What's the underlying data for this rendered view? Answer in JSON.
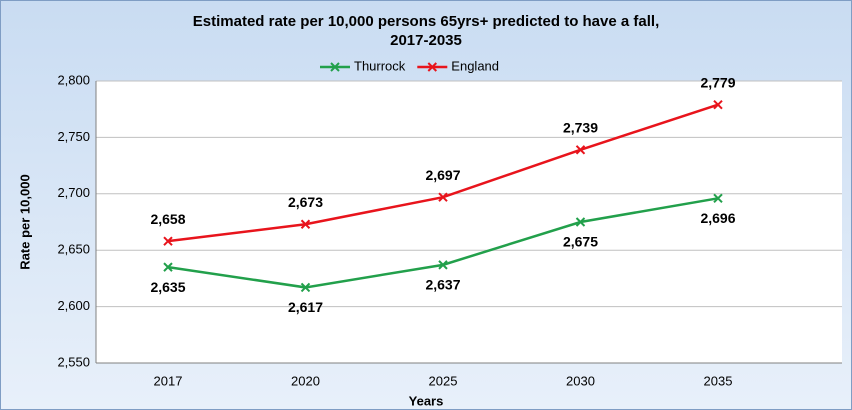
{
  "chart_data": {
    "type": "line",
    "title": [
      "Estimated rate per 10,000 persons 65yrs+ predicted to have a fall,",
      "2017-2035"
    ],
    "x_label": "Years",
    "y_label": "Rate per 10,000",
    "categories": [
      "2017",
      "2020",
      "2025",
      "2030",
      "2035"
    ],
    "series": [
      {
        "name": "Thurrock",
        "color": "#22a04b",
        "values": [
          2635,
          2617,
          2637,
          2675,
          2696
        ],
        "value_labels": [
          "2,635",
          "2,617",
          "2,637",
          "2,675",
          "2,696"
        ]
      },
      {
        "name": "England",
        "color": "#e8141c",
        "values": [
          2658,
          2673,
          2697,
          2739,
          2779
        ],
        "value_labels": [
          "2,658",
          "2,673",
          "2,697",
          "2,739",
          "2,779"
        ]
      }
    ],
    "ylim": [
      2550,
      2800
    ],
    "yticks": [
      {
        "value": 2550,
        "label": "2,550"
      },
      {
        "value": 2600,
        "label": "2,600"
      },
      {
        "value": 2650,
        "label": "2,650"
      },
      {
        "value": 2700,
        "label": "2,700"
      },
      {
        "value": 2750,
        "label": "2,750"
      },
      {
        "value": 2800,
        "label": "2,800"
      }
    ],
    "grid": true,
    "legend": "top"
  }
}
